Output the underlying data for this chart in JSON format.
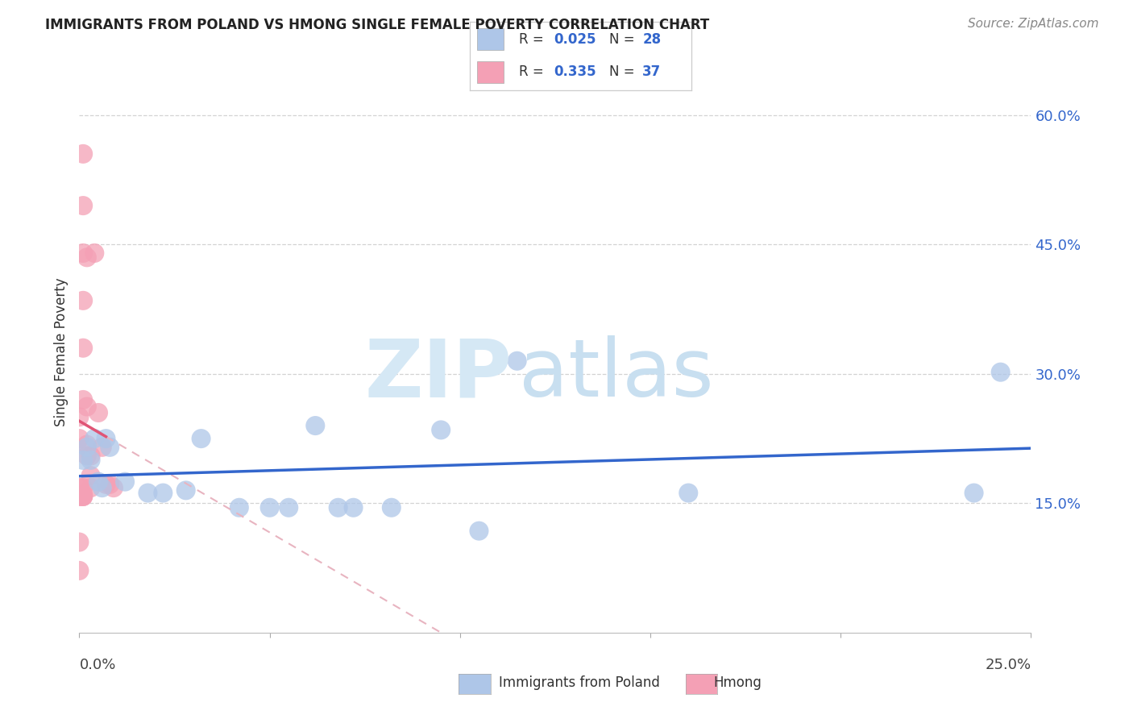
{
  "title": "IMMIGRANTS FROM POLAND VS HMONG SINGLE FEMALE POVERTY CORRELATION CHART",
  "source": "Source: ZipAtlas.com",
  "ylabel": "Single Female Poverty",
  "ytick_labels": [
    "15.0%",
    "30.0%",
    "45.0%",
    "60.0%"
  ],
  "ytick_values": [
    0.15,
    0.3,
    0.45,
    0.6
  ],
  "xlim": [
    0.0,
    0.25
  ],
  "ylim": [
    0.0,
    0.65
  ],
  "poland_color": "#aec6e8",
  "hmong_color": "#f4a0b5",
  "poland_line_color": "#3366cc",
  "hmong_line_color": "#e05575",
  "hmong_dashed_color": "#e8b4c0",
  "poland_x": [
    0.001,
    0.002,
    0.003,
    0.004,
    0.005,
    0.006,
    0.007,
    0.008,
    0.012,
    0.018,
    0.022,
    0.028,
    0.032,
    0.042,
    0.05,
    0.055,
    0.062,
    0.068,
    0.072,
    0.082,
    0.095,
    0.105,
    0.115,
    0.16,
    0.235,
    0.242
  ],
  "poland_y": [
    0.2,
    0.215,
    0.2,
    0.225,
    0.175,
    0.168,
    0.225,
    0.215,
    0.175,
    0.162,
    0.162,
    0.165,
    0.225,
    0.145,
    0.145,
    0.145,
    0.24,
    0.145,
    0.145,
    0.145,
    0.235,
    0.118,
    0.315,
    0.162,
    0.162,
    0.302
  ],
  "hmong_x": [
    0.001,
    0.001,
    0.001,
    0.001,
    0.001,
    0.001,
    0.002,
    0.002,
    0.002,
    0.002,
    0.003,
    0.003,
    0.003,
    0.001,
    0.001,
    0.001,
    0.001,
    0.001,
    0.0,
    0.0,
    0.0,
    0.0,
    0.0,
    0.0,
    0.0,
    0.0,
    0.004,
    0.005,
    0.006,
    0.007,
    0.008,
    0.009
  ],
  "hmong_y": [
    0.555,
    0.495,
    0.44,
    0.385,
    0.33,
    0.27,
    0.435,
    0.262,
    0.218,
    0.205,
    0.205,
    0.182,
    0.168,
    0.168,
    0.16,
    0.158,
    0.158,
    0.158,
    0.158,
    0.158,
    0.105,
    0.072,
    0.168,
    0.25,
    0.225,
    0.168,
    0.44,
    0.255,
    0.215,
    0.172,
    0.172,
    0.168
  ],
  "background_color": "#ffffff",
  "grid_color": "#c8c8c8",
  "right_axis_color": "#3366cc",
  "title_color": "#222222",
  "source_color": "#888888",
  "watermark_zip_color": "#d5e8f5",
  "watermark_atlas_color": "#c8dff0",
  "bottom_label_poland": "Immigrants from Poland",
  "bottom_label_hmong": "Hmong"
}
